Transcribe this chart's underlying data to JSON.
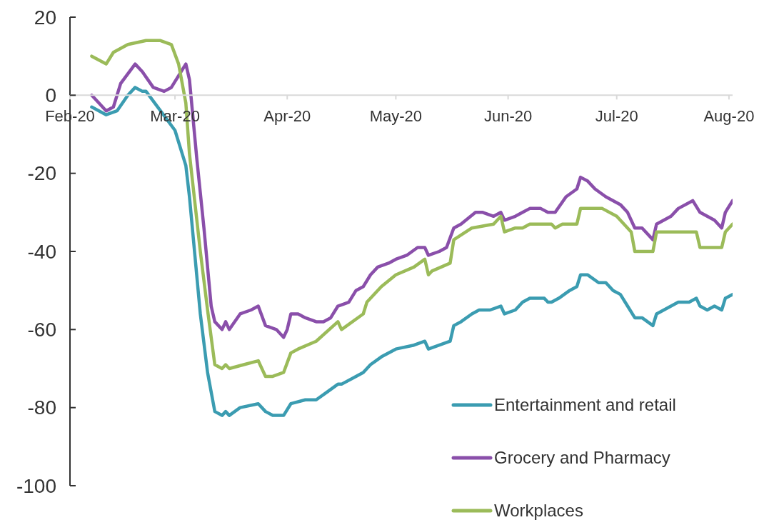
{
  "chart_data": {
    "type": "line",
    "xlim": [
      "2020-02-01",
      "2020-08-02"
    ],
    "xticks": [
      {
        "value": "2020-02-01",
        "label": "Feb-20"
      },
      {
        "value": "2020-03-01",
        "label": "Mar-20"
      },
      {
        "value": "2020-04-01",
        "label": "Apr-20"
      },
      {
        "value": "2020-05-01",
        "label": "May-20"
      },
      {
        "value": "2020-06-01",
        "label": "Jun-20"
      },
      {
        "value": "2020-07-01",
        "label": "Jul-20"
      },
      {
        "value": "2020-08-01",
        "label": "Aug-20"
      }
    ],
    "ylim": [
      -100,
      20
    ],
    "yticks": [
      -100,
      -80,
      -60,
      -40,
      -20,
      0,
      20
    ],
    "legend": "bottom right",
    "marker": "none",
    "line_style": "solid",
    "series": [
      {
        "name": "Entertainment and retail",
        "color": "#3b9cb1",
        "x": [
          "2020-02-07",
          "2020-02-11",
          "2020-02-14",
          "2020-02-17",
          "2020-02-19",
          "2020-02-21",
          "2020-02-22",
          "2020-02-26",
          "2020-03-01",
          "2020-03-03",
          "2020-03-04",
          "2020-03-05",
          "2020-03-08",
          "2020-03-10",
          "2020-03-12",
          "2020-03-14",
          "2020-03-15",
          "2020-03-16",
          "2020-03-19",
          "2020-03-24",
          "2020-03-26",
          "2020-03-28",
          "2020-03-31",
          "2020-04-02",
          "2020-04-06",
          "2020-04-09",
          "2020-04-12",
          "2020-04-15",
          "2020-04-16",
          "2020-04-20",
          "2020-04-22",
          "2020-04-24",
          "2020-04-27",
          "2020-05-01",
          "2020-05-06",
          "2020-05-09",
          "2020-05-10",
          "2020-05-13",
          "2020-05-16",
          "2020-05-17",
          "2020-05-19",
          "2020-05-22",
          "2020-05-24",
          "2020-05-27",
          "2020-05-30",
          "2020-05-31",
          "2020-06-03",
          "2020-06-05",
          "2020-06-07",
          "2020-06-11",
          "2020-06-12",
          "2020-06-13",
          "2020-06-15",
          "2020-06-18",
          "2020-06-20",
          "2020-06-21",
          "2020-06-23",
          "2020-06-26",
          "2020-06-28",
          "2020-06-30",
          "2020-07-02",
          "2020-07-04",
          "2020-07-06",
          "2020-07-08",
          "2020-07-11",
          "2020-07-12",
          "2020-07-14",
          "2020-07-18",
          "2020-07-21",
          "2020-07-23",
          "2020-07-24",
          "2020-07-26",
          "2020-07-28",
          "2020-07-30",
          "2020-07-31",
          "2020-08-02"
        ],
        "values": [
          -3,
          -5,
          -4,
          0,
          2,
          1,
          1,
          -4,
          -9,
          -15,
          -18,
          -26,
          -56,
          -71,
          -81,
          -82,
          -81,
          -82,
          -80,
          -79,
          -81,
          -82,
          -82,
          -79,
          -78,
          -78,
          -76,
          -74,
          -74,
          -72,
          -71,
          -69,
          -67,
          -65,
          -64,
          -63,
          -65,
          -64,
          -63,
          -59,
          -58,
          -56,
          -55,
          -55,
          -54,
          -56,
          -55,
          -53,
          -52,
          -52,
          -53,
          -53,
          -52,
          -50,
          -49,
          -46,
          -46,
          -48,
          -48,
          -50,
          -51,
          -54,
          -57,
          -57,
          -59,
          -56,
          -55,
          -53,
          -53,
          -52,
          -54,
          -55,
          -54,
          -55,
          -52,
          -51
        ]
      },
      {
        "name": "Grocery and Pharmacy",
        "color": "#8a4faa",
        "x": [
          "2020-02-07",
          "2020-02-11",
          "2020-02-13",
          "2020-02-15",
          "2020-02-19",
          "2020-02-21",
          "2020-02-24",
          "2020-02-27",
          "2020-02-29",
          "2020-03-04",
          "2020-03-05",
          "2020-03-07",
          "2020-03-09",
          "2020-03-11",
          "2020-03-12",
          "2020-03-14",
          "2020-03-15",
          "2020-03-16",
          "2020-03-19",
          "2020-03-22",
          "2020-03-24",
          "2020-03-26",
          "2020-03-29",
          "2020-03-31",
          "2020-04-01",
          "2020-04-02",
          "2020-04-04",
          "2020-04-06",
          "2020-04-09",
          "2020-04-11",
          "2020-04-13",
          "2020-04-15",
          "2020-04-18",
          "2020-04-20",
          "2020-04-22",
          "2020-04-24",
          "2020-04-26",
          "2020-04-29",
          "2020-05-01",
          "2020-05-04",
          "2020-05-07",
          "2020-05-09",
          "2020-05-10",
          "2020-05-13",
          "2020-05-15",
          "2020-05-17",
          "2020-05-19",
          "2020-05-23",
          "2020-05-25",
          "2020-05-28",
          "2020-05-30",
          "2020-05-31",
          "2020-06-03",
          "2020-06-05",
          "2020-06-07",
          "2020-06-08",
          "2020-06-10",
          "2020-06-12",
          "2020-06-14",
          "2020-06-17",
          "2020-06-20",
          "2020-06-21",
          "2020-06-23",
          "2020-06-25",
          "2020-06-28",
          "2020-06-30",
          "2020-07-02",
          "2020-07-04",
          "2020-07-06",
          "2020-07-08",
          "2020-07-11",
          "2020-07-12",
          "2020-07-14",
          "2020-07-16",
          "2020-07-18",
          "2020-07-22",
          "2020-07-24",
          "2020-07-26",
          "2020-07-28",
          "2020-07-30",
          "2020-07-31",
          "2020-08-02"
        ],
        "values": [
          0,
          -4,
          -3,
          3,
          8,
          6,
          2,
          1,
          2,
          8,
          4,
          -16,
          -34,
          -54,
          -58,
          -60,
          -58,
          -60,
          -56,
          -55,
          -54,
          -59,
          -60,
          -62,
          -60,
          -56,
          -56,
          -57,
          -58,
          -58,
          -57,
          -54,
          -53,
          -50,
          -49,
          -46,
          -44,
          -43,
          -42,
          -41,
          -39,
          -39,
          -41,
          -40,
          -39,
          -34,
          -33,
          -30,
          -30,
          -31,
          -30,
          -32,
          -31,
          -30,
          -29,
          -29,
          -29,
          -30,
          -30,
          -26,
          -24,
          -21,
          -22,
          -24,
          -26,
          -27,
          -28,
          -30,
          -34,
          -34,
          -37,
          -33,
          -32,
          -31,
          -29,
          -27,
          -30,
          -31,
          -32,
          -34,
          -30,
          -27
        ]
      },
      {
        "name": "Workplaces",
        "color": "#9bbb59",
        "x": [
          "2020-02-07",
          "2020-02-11",
          "2020-02-13",
          "2020-02-17",
          "2020-02-22",
          "2020-02-26",
          "2020-02-29",
          "2020-03-02",
          "2020-03-04",
          "2020-03-05",
          "2020-03-08",
          "2020-03-10",
          "2020-03-11",
          "2020-03-12",
          "2020-03-14",
          "2020-03-15",
          "2020-03-16",
          "2020-03-20",
          "2020-03-24",
          "2020-03-26",
          "2020-03-28",
          "2020-03-31",
          "2020-04-02",
          "2020-04-04",
          "2020-04-09",
          "2020-04-15",
          "2020-04-16",
          "2020-04-22",
          "2020-04-23",
          "2020-04-27",
          "2020-05-01",
          "2020-05-06",
          "2020-05-09",
          "2020-05-10",
          "2020-05-11",
          "2020-05-16",
          "2020-05-17",
          "2020-05-22",
          "2020-05-28",
          "2020-05-30",
          "2020-05-31",
          "2020-06-03",
          "2020-06-05",
          "2020-06-07",
          "2020-06-09",
          "2020-06-11",
          "2020-06-13",
          "2020-06-14",
          "2020-06-16",
          "2020-06-20",
          "2020-06-21",
          "2020-06-24",
          "2020-06-27",
          "2020-07-01",
          "2020-07-03",
          "2020-07-05",
          "2020-07-06",
          "2020-07-10",
          "2020-07-11",
          "2020-07-12",
          "2020-07-17",
          "2020-07-18",
          "2020-07-23",
          "2020-07-24",
          "2020-07-25",
          "2020-07-29",
          "2020-07-30",
          "2020-07-31",
          "2020-08-02"
        ],
        "values": [
          10,
          8,
          11,
          13,
          14,
          14,
          13,
          8,
          -2,
          -15,
          -40,
          -55,
          -62,
          -69,
          -70,
          -69,
          -70,
          -69,
          -68,
          -72,
          -72,
          -71,
          -66,
          -65,
          -63,
          -58,
          -60,
          -56,
          -53,
          -49,
          -46,
          -44,
          -42,
          -46,
          -45,
          -43,
          -37,
          -34,
          -33,
          -31,
          -35,
          -34,
          -34,
          -33,
          -33,
          -33,
          -33,
          -34,
          -33,
          -33,
          -29,
          -29,
          -29,
          -31,
          -33,
          -35,
          -40,
          -40,
          -40,
          -35,
          -35,
          -35,
          -35,
          -39,
          -39,
          -39,
          -39,
          -35,
          -33
        ]
      }
    ]
  }
}
